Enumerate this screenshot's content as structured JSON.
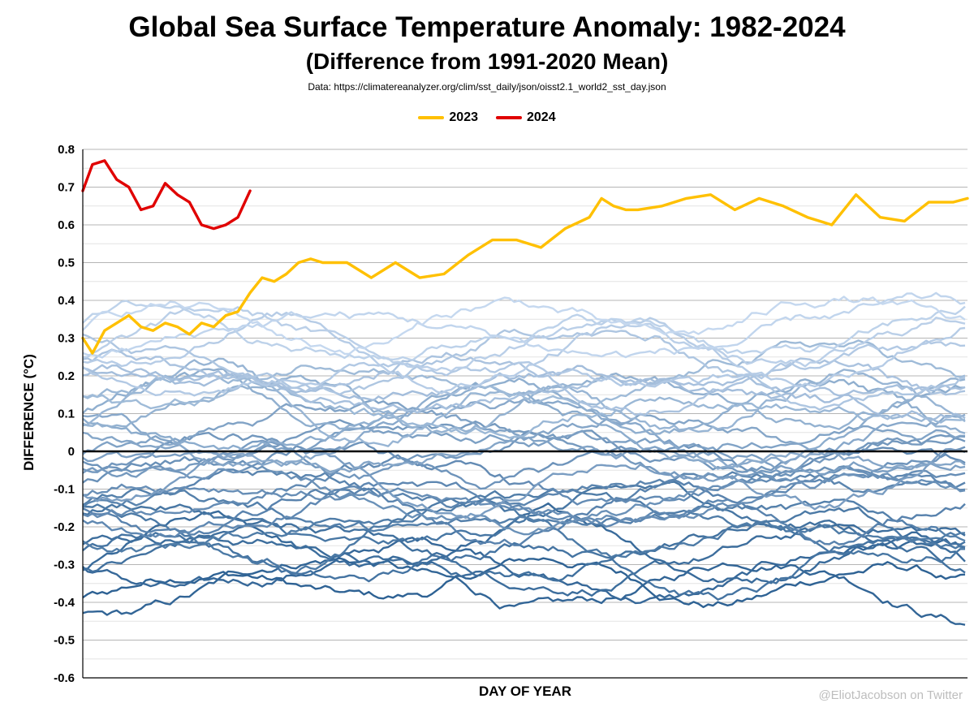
{
  "chart_data": {
    "type": "line",
    "title": "Global Sea Surface Temperature Anomaly: 1982-2024",
    "subtitle": "(Difference from 1991-2020 Mean)",
    "source": "Data: https://climatereanalyzer.org/clim/sst_daily/json/oisst2.1_world2_sst_day.json",
    "xlabel": "DAY OF YEAR",
    "ylabel": "DIFFERENCE (°C)",
    "ylim": [
      -0.6,
      0.8
    ],
    "xlim": [
      1,
      366
    ],
    "yticks": [
      "0.8",
      "0.7",
      "0.6",
      "0.5",
      "0.4",
      "0.3",
      "0.2",
      "0.1",
      "0",
      "-0.1",
      "-0.2",
      "-0.3",
      "-0.4",
      "-0.5",
      "-0.6"
    ],
    "grid": true,
    "legend_position": "top-center",
    "zero_line": true,
    "colors": {
      "y2023": "#FFC000",
      "y2024": "#E00000",
      "older_light": "#C5D8EF",
      "older_dark": "#2E6294"
    },
    "series": [
      {
        "name": "2023",
        "color": "#FFC000",
        "x": [
          1,
          5,
          10,
          15,
          20,
          25,
          30,
          35,
          40,
          45,
          50,
          55,
          60,
          65,
          70,
          75,
          80,
          85,
          90,
          95,
          100,
          110,
          120,
          130,
          140,
          150,
          160,
          170,
          180,
          190,
          200,
          210,
          215,
          220,
          225,
          230,
          240,
          250,
          260,
          270,
          280,
          290,
          300,
          310,
          320,
          330,
          340,
          350,
          360,
          366
        ],
        "y": [
          0.3,
          0.26,
          0.32,
          0.34,
          0.36,
          0.33,
          0.32,
          0.34,
          0.33,
          0.31,
          0.34,
          0.33,
          0.36,
          0.37,
          0.42,
          0.46,
          0.45,
          0.47,
          0.5,
          0.51,
          0.5,
          0.5,
          0.46,
          0.5,
          0.46,
          0.47,
          0.52,
          0.56,
          0.56,
          0.54,
          0.59,
          0.62,
          0.67,
          0.65,
          0.64,
          0.64,
          0.65,
          0.67,
          0.68,
          0.64,
          0.67,
          0.65,
          0.62,
          0.6,
          0.68,
          0.62,
          0.61,
          0.66,
          0.66,
          0.67
        ]
      },
      {
        "name": "2024",
        "color": "#E00000",
        "x": [
          1,
          5,
          10,
          15,
          20,
          25,
          30,
          35,
          40,
          45,
          50,
          55,
          60,
          65,
          70
        ],
        "y": [
          0.69,
          0.76,
          0.77,
          0.72,
          0.7,
          0.64,
          0.65,
          0.71,
          0.68,
          0.66,
          0.6,
          0.59,
          0.6,
          0.62,
          0.69
        ]
      }
    ]
  },
  "credit": "@EliotJacobson on Twitter"
}
